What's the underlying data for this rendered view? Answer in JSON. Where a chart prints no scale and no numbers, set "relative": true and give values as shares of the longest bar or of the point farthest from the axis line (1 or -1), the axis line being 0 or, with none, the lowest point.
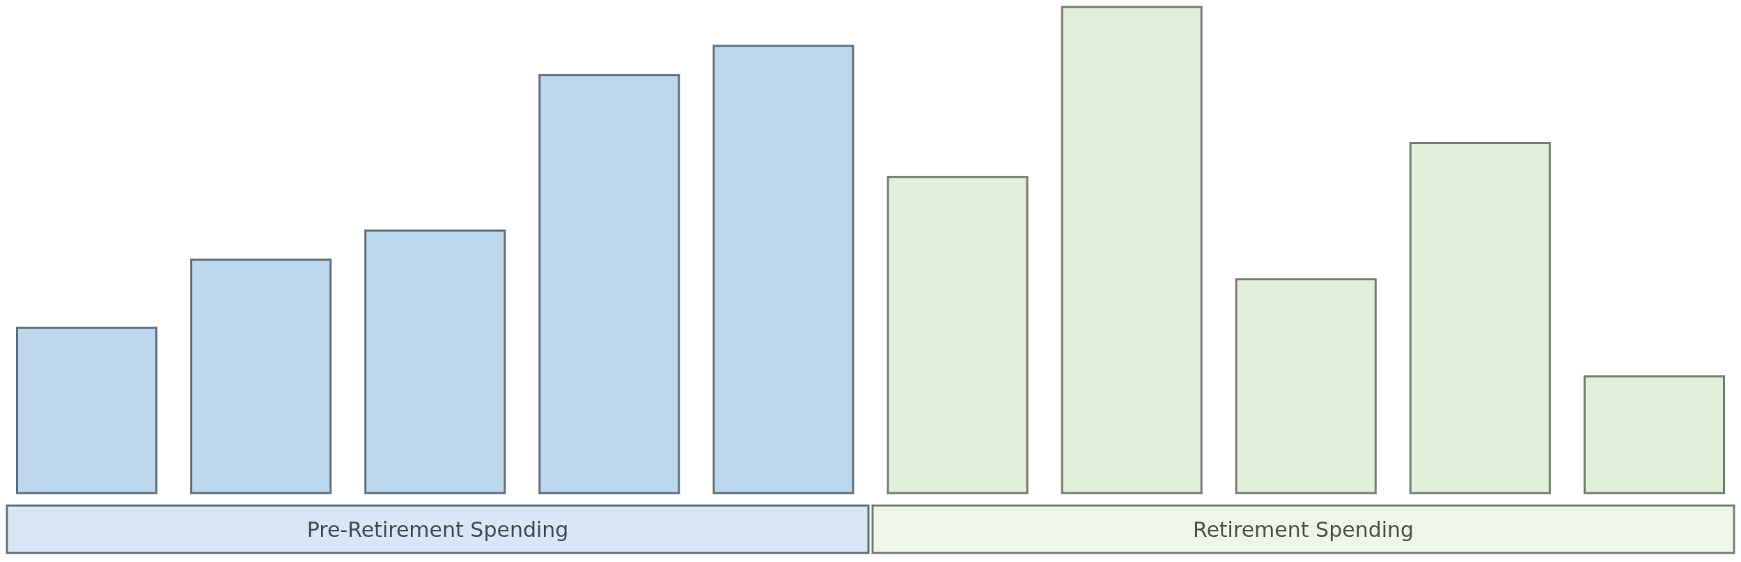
{
  "chart_data": {
    "type": "bar",
    "relative": true,
    "categories": [
      null,
      null,
      null,
      null,
      null,
      null,
      null,
      null,
      null,
      null
    ],
    "values": [
      0.34,
      0.48,
      0.54,
      0.86,
      0.92,
      0.65,
      1,
      0.44,
      0.72,
      0.24
    ],
    "colors": [
      "#bdd7ee",
      "#bdd7ee",
      "#bdd7ee",
      "#bdd7ee",
      "#bdd7ee",
      "#e2efda",
      "#e2efda",
      "#e2efda",
      "#e2efda",
      "#e2efda"
    ],
    "annotations": [
      "Pre-Retirement Spending",
      "Retirement Spending"
    ]
  }
}
